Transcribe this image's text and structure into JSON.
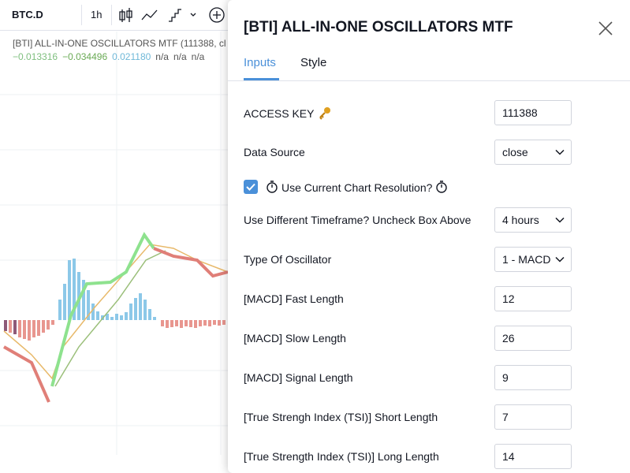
{
  "toolbar": {
    "symbol": "BTC.D",
    "interval": "1h"
  },
  "indicator": {
    "title": "[BTI] ALL-IN-ONE OSCILLATORS MTF (111388, cl",
    "values": [
      {
        "text": "−0.013316",
        "color": "#7fbf7f"
      },
      {
        "text": "−0.034496",
        "color": "#6aaa55"
      },
      {
        "text": "0.021180",
        "color": "#6fb8d8"
      },
      {
        "text": "n/a",
        "color": "#555555"
      },
      {
        "text": "n/a",
        "color": "#555555"
      },
      {
        "text": "n/a",
        "color": "#555555"
      }
    ]
  },
  "dialog": {
    "title": "[BTI] ALL-IN-ONE OSCILLATORS MTF",
    "tabs": [
      "Inputs",
      "Style"
    ],
    "fields": [
      {
        "label": "ACCESS KEY",
        "value": "111388",
        "icon": "key"
      },
      {
        "label": "Data Source",
        "value": "close",
        "dropdown": true
      },
      {
        "label": "Use Current Chart Resolution?",
        "checked": true,
        "icon": "stopwatch"
      },
      {
        "label": "Use Different Timeframe? Uncheck Box Above",
        "value": "4 hours",
        "dropdown": true
      },
      {
        "label": "Type Of Oscillator",
        "value": "1 - MACD",
        "dropdown": true
      },
      {
        "label": "[MACD] Fast Length",
        "value": "12"
      },
      {
        "label": "[MACD] Slow Length",
        "value": "26"
      },
      {
        "label": "[MACD] Signal Length",
        "value": "9"
      },
      {
        "label": "[True Strengh Index (TSI)] Short Length",
        "value": "7"
      },
      {
        "label": "[True Strength Index (TSI)] Long Length",
        "value": "14"
      }
    ]
  }
}
